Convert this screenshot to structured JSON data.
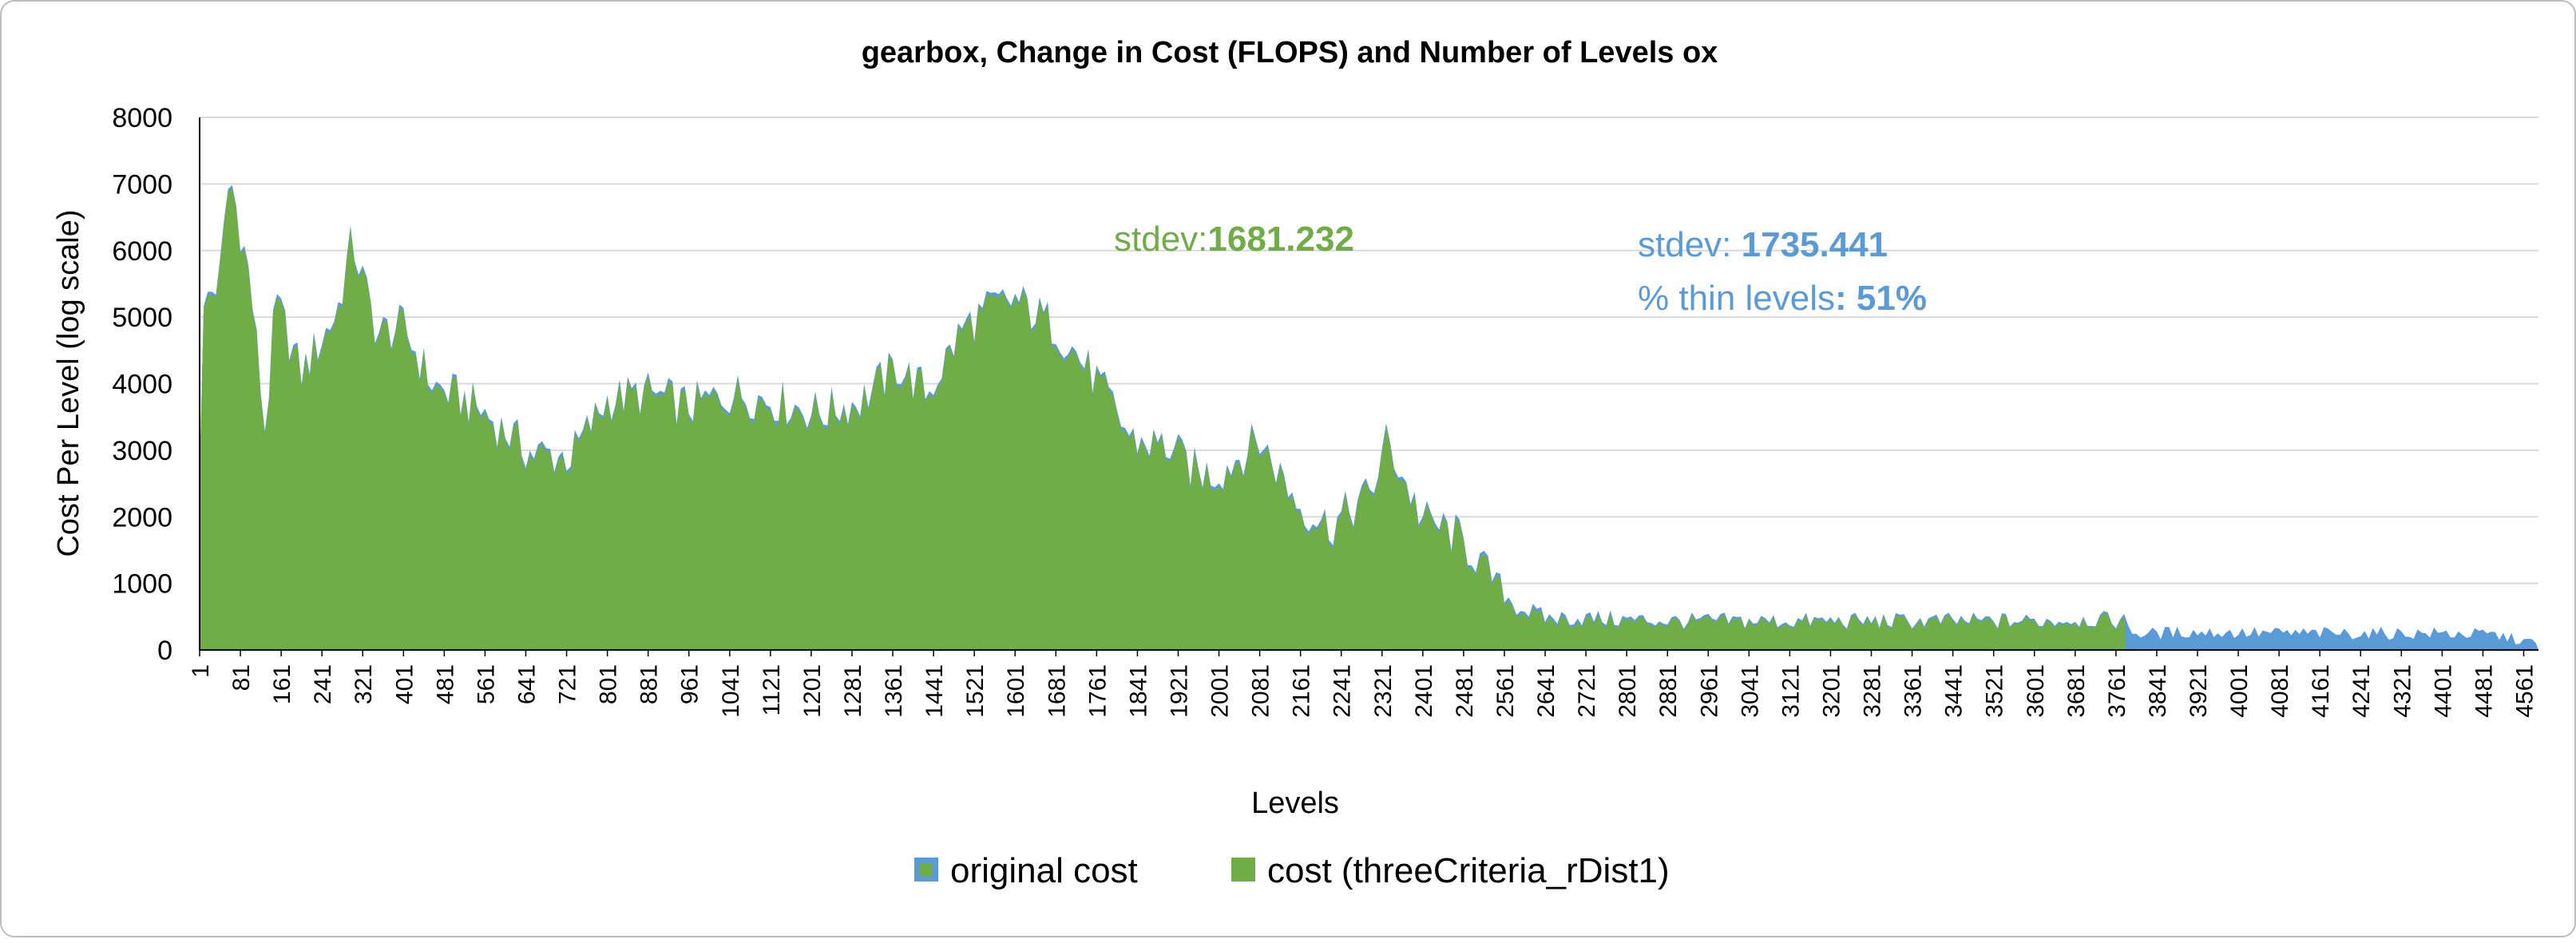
{
  "chart_data": {
    "type": "bar",
    "title": "gearbox, Change in Cost (FLOPS) and Number of Levels ox",
    "xlabel": "Levels",
    "ylabel": "Cost Per Level (log scale)",
    "ylim": [
      0,
      8000
    ],
    "yticks": [
      0,
      1000,
      2000,
      3000,
      4000,
      5000,
      6000,
      7000,
      8000
    ],
    "x_range": [
      1,
      4590
    ],
    "xticks": [
      1,
      81,
      161,
      241,
      321,
      401,
      481,
      561,
      641,
      721,
      801,
      881,
      961,
      1041,
      1121,
      1201,
      1281,
      1361,
      1441,
      1521,
      1601,
      1681,
      1761,
      1841,
      1921,
      2001,
      2081,
      2161,
      2241,
      2321,
      2401,
      2481,
      2561,
      2641,
      2721,
      2801,
      2881,
      2961,
      3041,
      3121,
      3201,
      3281,
      3361,
      3441,
      3521,
      3601,
      3681,
      3761,
      3841,
      3921,
      4001,
      4081,
      4161,
      4241,
      4321,
      4401,
      4481,
      4561
    ],
    "grid": true,
    "legend_position": "bottom",
    "series": [
      {
        "name": "original cost",
        "color": "#5b9bd5",
        "x": [
          1,
          10,
          40,
          60,
          100,
          130,
          150,
          200,
          270,
          300,
          350,
          400,
          460,
          520,
          560,
          650,
          730,
          800,
          880,
          960,
          1050,
          1120,
          1220,
          1300,
          1370,
          1430,
          1500,
          1560,
          1600,
          1680,
          1760,
          1830,
          1900,
          1960,
          2000,
          2080,
          2160,
          2220,
          2300,
          2330,
          2400,
          2460,
          2520,
          2580,
          2640,
          2700,
          2800,
          2900,
          3000,
          3100,
          3200,
          3300,
          3400,
          3500,
          3600,
          3700,
          3780,
          3800,
          3900,
          4000,
          4100,
          4200,
          4300,
          4400,
          4500,
          4590
        ],
        "values": [
          2900,
          5300,
          5600,
          7200,
          5600,
          3300,
          5300,
          4200,
          5100,
          6200,
          4800,
          4900,
          4000,
          3800,
          3600,
          3000,
          2950,
          3800,
          3900,
          3700,
          3900,
          3800,
          3600,
          3800,
          4300,
          3900,
          4900,
          5200,
          5300,
          4900,
          4100,
          3200,
          3100,
          2700,
          2700,
          3200,
          2200,
          1900,
          2400,
          3200,
          2000,
          1800,
          1300,
          700,
          500,
          500,
          470,
          450,
          450,
          450,
          450,
          450,
          450,
          450,
          450,
          480,
          450,
          250,
          280,
          270,
          260,
          260,
          260,
          260,
          240,
          100
        ]
      },
      {
        "name": "cost (threeCriteria_rDist1)",
        "color": "#70ad47",
        "x": [
          1,
          10,
          40,
          60,
          100,
          130,
          150,
          200,
          270,
          300,
          350,
          400,
          460,
          520,
          560,
          650,
          730,
          800,
          880,
          960,
          1050,
          1120,
          1220,
          1300,
          1370,
          1430,
          1500,
          1560,
          1600,
          1680,
          1760,
          1830,
          1900,
          1960,
          2000,
          2080,
          2160,
          2220,
          2300,
          2330,
          2400,
          2460,
          2520,
          2580,
          2640,
          2700,
          2800,
          2900,
          3000,
          3100,
          3200,
          3300,
          3400,
          3500,
          3600,
          3700,
          3780
        ],
        "values": [
          2850,
          5250,
          5550,
          7150,
          5550,
          3250,
          5250,
          4150,
          5050,
          6150,
          4750,
          4850,
          3950,
          3750,
          3550,
          2950,
          2900,
          3750,
          3850,
          3650,
          3850,
          3750,
          3550,
          3750,
          4250,
          3850,
          4850,
          5150,
          5250,
          4850,
          4050,
          3150,
          3050,
          2650,
          2650,
          3150,
          2150,
          1850,
          2350,
          3150,
          1950,
          1750,
          1250,
          650,
          450,
          450,
          430,
          420,
          420,
          420,
          420,
          420,
          420,
          420,
          420,
          450,
          420
        ]
      }
    ],
    "annotations": [
      {
        "label": "stdev:",
        "value": "1681.232",
        "color": "#70ad47"
      },
      {
        "label": "stdev: ",
        "value": "1735.441",
        "color": "#5b9bd5"
      },
      {
        "label": "% thin levels",
        "value": ": 51%",
        "color": "#5b9bd5"
      }
    ]
  }
}
